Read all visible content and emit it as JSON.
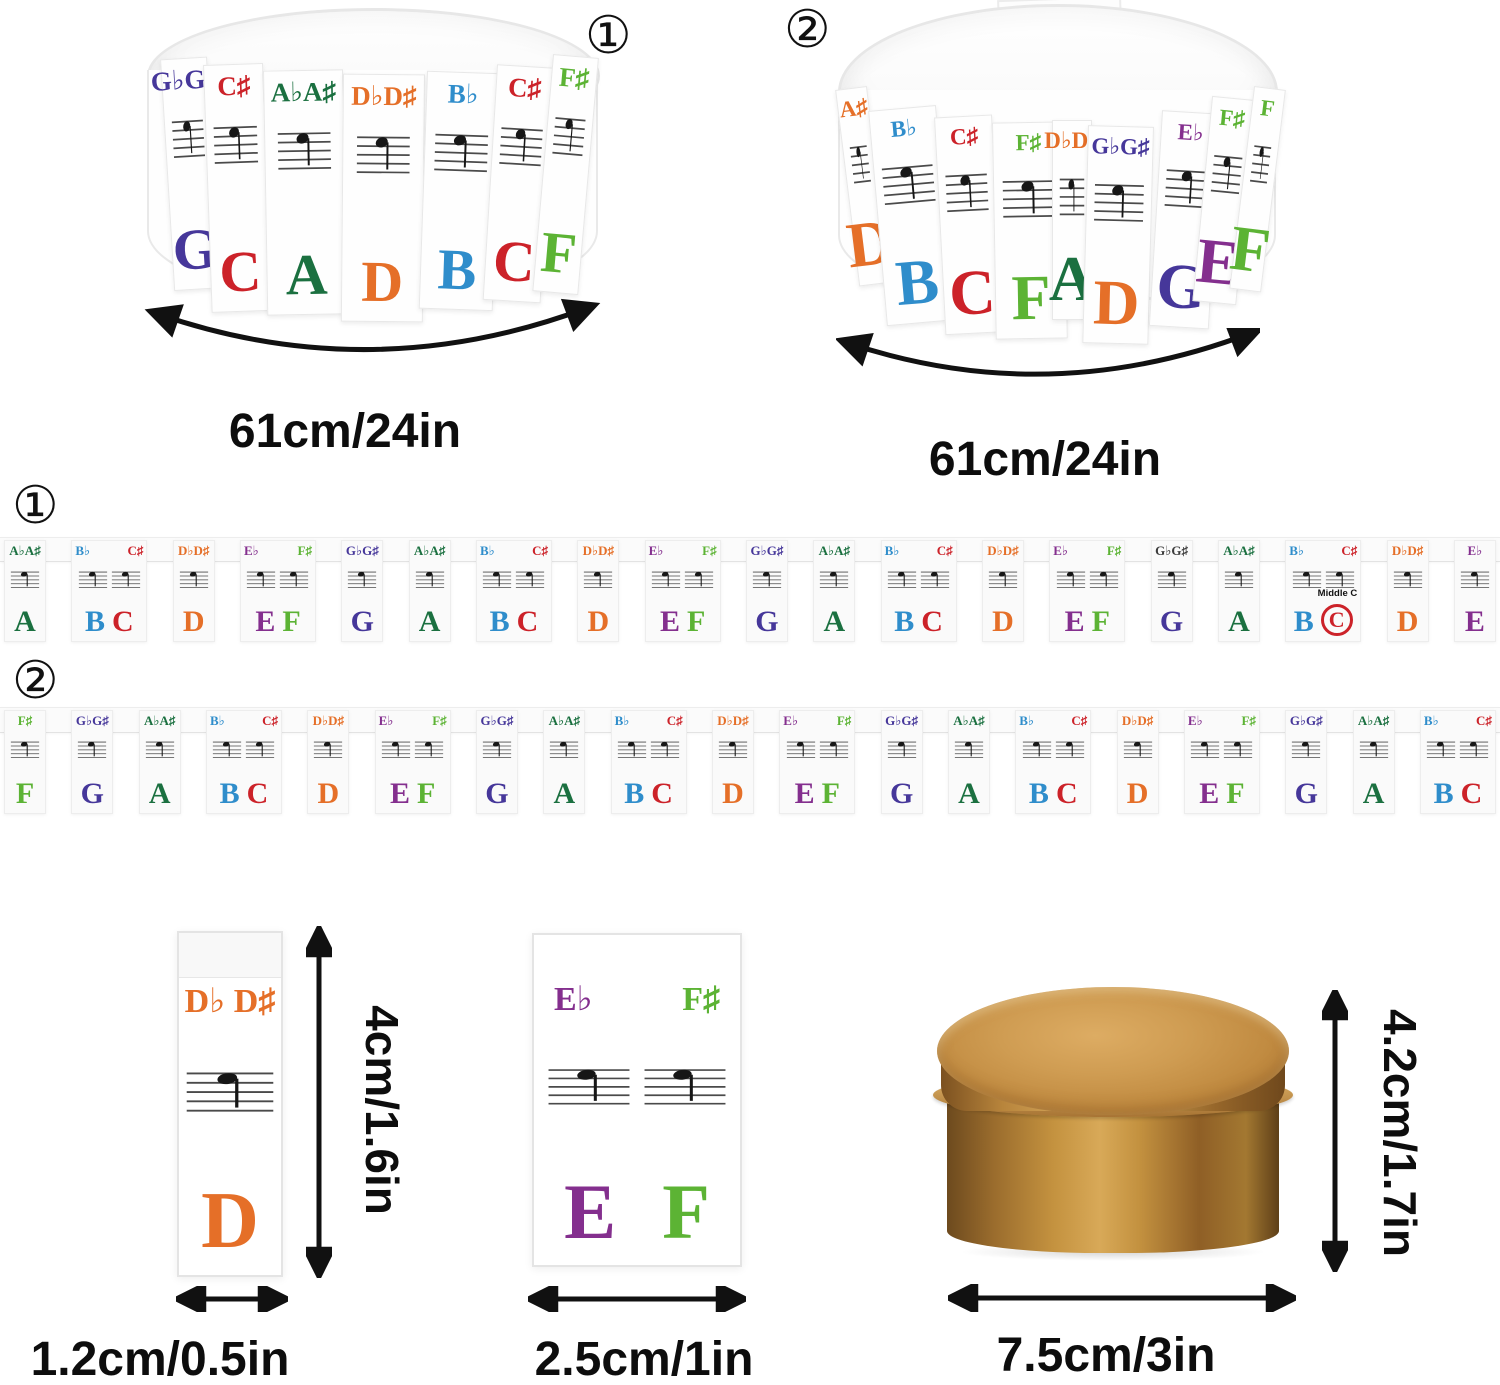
{
  "colors": {
    "A": "#1b7040",
    "B": "#2f8dcb",
    "C": "#cc2229",
    "D": "#e56f28",
    "E": "#842f8e",
    "F": "#5cb334",
    "G": "#46379a"
  },
  "band1": {
    "number": "①",
    "dimension": "61cm/24in",
    "cards": [
      {
        "acc": "G♭G♯",
        "letter": "G"
      },
      {
        "acc": "C♯",
        "letter": "C"
      },
      {
        "acc": "A♭A♯",
        "letter": "A"
      },
      {
        "acc": "D♭D♯",
        "letter": "D"
      },
      {
        "acc": "B♭",
        "letter": "B"
      },
      {
        "acc": "C♯",
        "letter": "C"
      },
      {
        "acc": "F♯",
        "letter": "F"
      }
    ]
  },
  "band2": {
    "number": "②",
    "dimension": "61cm/24in",
    "cards": [
      {
        "acc": "A♯",
        "letter": "D",
        "acc_color": "#e56f28"
      },
      {
        "acc": "B♭",
        "letter": "B"
      },
      {
        "acc": "C♯",
        "letter": "C"
      },
      {
        "acc": "F♯",
        "letter": "F"
      },
      {
        "acc": "D♭D♯",
        "letter": "A",
        "acc_color": "#e56f28"
      },
      {
        "acc": "G♭G♯",
        "letter": "D",
        "acc_color": "#46379a"
      },
      {
        "acc": "E♭",
        "letter": "G",
        "acc_color": "#842f8e"
      },
      {
        "acc": "F♯",
        "letter": "E",
        "acc_color": "#5cb334"
      },
      {
        "acc": "F",
        "letter": "F"
      }
    ]
  },
  "strip1": {
    "number": "①",
    "middle_c_label": "Middle C",
    "groups": [
      {
        "letters": [
          "A"
        ],
        "accs": [
          "A♭A♯"
        ]
      },
      {
        "letters": [
          "B",
          "C"
        ],
        "accs": [
          "B♭",
          "C♯"
        ]
      },
      {
        "letters": [
          "D"
        ],
        "accs": [
          "D♭D♯"
        ]
      },
      {
        "letters": [
          "E",
          "F"
        ],
        "accs": [
          "E♭",
          "F♯"
        ]
      },
      {
        "letters": [
          "G"
        ],
        "accs": [
          "G♭G♯"
        ]
      },
      {
        "letters": [
          "A"
        ],
        "accs": [
          "A♭A♯"
        ]
      },
      {
        "letters": [
          "B",
          "C"
        ],
        "accs": [
          "B♭",
          "C♯"
        ]
      },
      {
        "letters": [
          "D"
        ],
        "accs": [
          "D♭D♯"
        ]
      },
      {
        "letters": [
          "E",
          "F"
        ],
        "accs": [
          "E♭",
          "F♯"
        ]
      },
      {
        "letters": [
          "G"
        ],
        "accs": [
          "G♭G♯"
        ]
      },
      {
        "letters": [
          "A"
        ],
        "accs": [
          "A♭A♯"
        ]
      },
      {
        "letters": [
          "B",
          "C"
        ],
        "accs": [
          "B♭",
          "C♯"
        ]
      },
      {
        "letters": [
          "D"
        ],
        "accs": [
          "D♭D♯"
        ]
      },
      {
        "letters": [
          "E",
          "F"
        ],
        "accs": [
          "E♭",
          "F♯"
        ]
      },
      {
        "letters": [
          "G"
        ],
        "accs": [
          "G♭G♯"
        ],
        "acc_color": "#3c3c3c"
      },
      {
        "letters": [
          "A"
        ],
        "accs": [
          "A♭A♯"
        ]
      },
      {
        "letters": [
          "B",
          "C"
        ],
        "accs": [
          "B♭",
          "C♯"
        ],
        "middle_c": true
      },
      {
        "letters": [
          "D"
        ],
        "accs": [
          "D♭D♯"
        ]
      },
      {
        "letters": [
          "E"
        ],
        "accs": [
          "E♭"
        ]
      }
    ]
  },
  "strip2": {
    "number": "②",
    "groups": [
      {
        "letters": [
          "F"
        ],
        "accs": [
          "F♯"
        ]
      },
      {
        "letters": [
          "G"
        ],
        "accs": [
          "G♭G♯"
        ]
      },
      {
        "letters": [
          "A"
        ],
        "accs": [
          "A♭A♯"
        ]
      },
      {
        "letters": [
          "B",
          "C"
        ],
        "accs": [
          "B♭",
          "C♯"
        ]
      },
      {
        "letters": [
          "D"
        ],
        "accs": [
          "D♭D♯"
        ]
      },
      {
        "letters": [
          "E",
          "F"
        ],
        "accs": [
          "E♭",
          "F♯"
        ]
      },
      {
        "letters": [
          "G"
        ],
        "accs": [
          "G♭G♯"
        ]
      },
      {
        "letters": [
          "A"
        ],
        "accs": [
          "A♭A♯"
        ]
      },
      {
        "letters": [
          "B",
          "C"
        ],
        "accs": [
          "B♭",
          "C♯"
        ]
      },
      {
        "letters": [
          "D"
        ],
        "accs": [
          "D♭D♯"
        ]
      },
      {
        "letters": [
          "E",
          "F"
        ],
        "accs": [
          "E♭",
          "F♯"
        ]
      },
      {
        "letters": [
          "G"
        ],
        "accs": [
          "G♭G♯"
        ]
      },
      {
        "letters": [
          "A"
        ],
        "accs": [
          "A♭A♯"
        ]
      },
      {
        "letters": [
          "B",
          "C"
        ],
        "accs": [
          "B♭",
          "C♯"
        ]
      },
      {
        "letters": [
          "D"
        ],
        "accs": [
          "D♭D♯"
        ]
      },
      {
        "letters": [
          "E",
          "F"
        ],
        "accs": [
          "E♭",
          "F♯"
        ]
      },
      {
        "letters": [
          "G"
        ],
        "accs": [
          "G♭G♯"
        ]
      },
      {
        "letters": [
          "A"
        ],
        "accs": [
          "A♭A♯"
        ]
      },
      {
        "letters": [
          "B",
          "C"
        ],
        "accs": [
          "B♭",
          "C♯"
        ]
      }
    ]
  },
  "bottom": {
    "d_card": {
      "accidental": "D♭ D♯",
      "letter": "D",
      "height_label": "4cm/1.6in",
      "width_label": "1.2cm/0.5in"
    },
    "ef_card": {
      "accidentals": [
        "E♭",
        "F♯"
      ],
      "letters": [
        "E",
        "F"
      ],
      "width_label": "2.5cm/1in"
    },
    "tin": {
      "height_label": "4.2cm/1.7in",
      "width_label": "7.5cm/3in",
      "color_hex": "#c08a40"
    }
  }
}
